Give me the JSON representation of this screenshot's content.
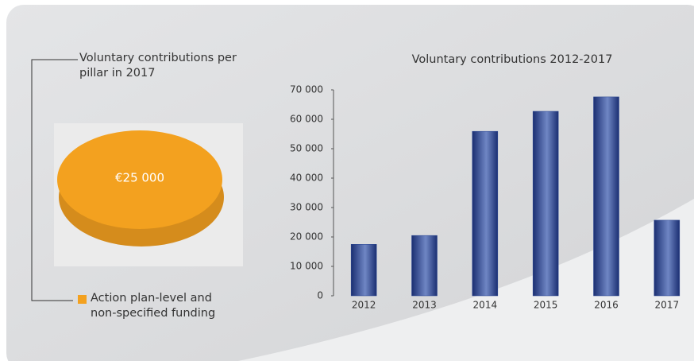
{
  "chart_data": [
    {
      "type": "pie",
      "title": "Voluntary contributions per pillar in 2017",
      "categories": [
        "Action plan-level and non-specified funding"
      ],
      "values": [
        25000
      ],
      "value_labels": [
        "€25 000"
      ],
      "color": "#f3a11f"
    },
    {
      "type": "bar",
      "title": "Voluntary contributions 2012-2017",
      "categories": [
        "2012",
        "2013",
        "2014",
        "2015",
        "2016",
        "2017"
      ],
      "values": [
        17500,
        20500,
        55900,
        62700,
        67600,
        25700
      ],
      "color": "#24418f",
      "ylim": [
        0,
        70000
      ],
      "yticks": [
        0,
        {
          "value": 10000,
          "label": "10 000"
        },
        {
          "value": 20000,
          "label": "20 000"
        },
        {
          "value": 30000,
          "label": "30 000"
        },
        {
          "value": 40000,
          "label": "40 000"
        },
        {
          "value": 50000,
          "label": "50 000"
        },
        {
          "value": 60000,
          "label": "60 000"
        },
        {
          "value": 70000,
          "label": "70 000"
        }
      ],
      "grid": false
    }
  ]
}
